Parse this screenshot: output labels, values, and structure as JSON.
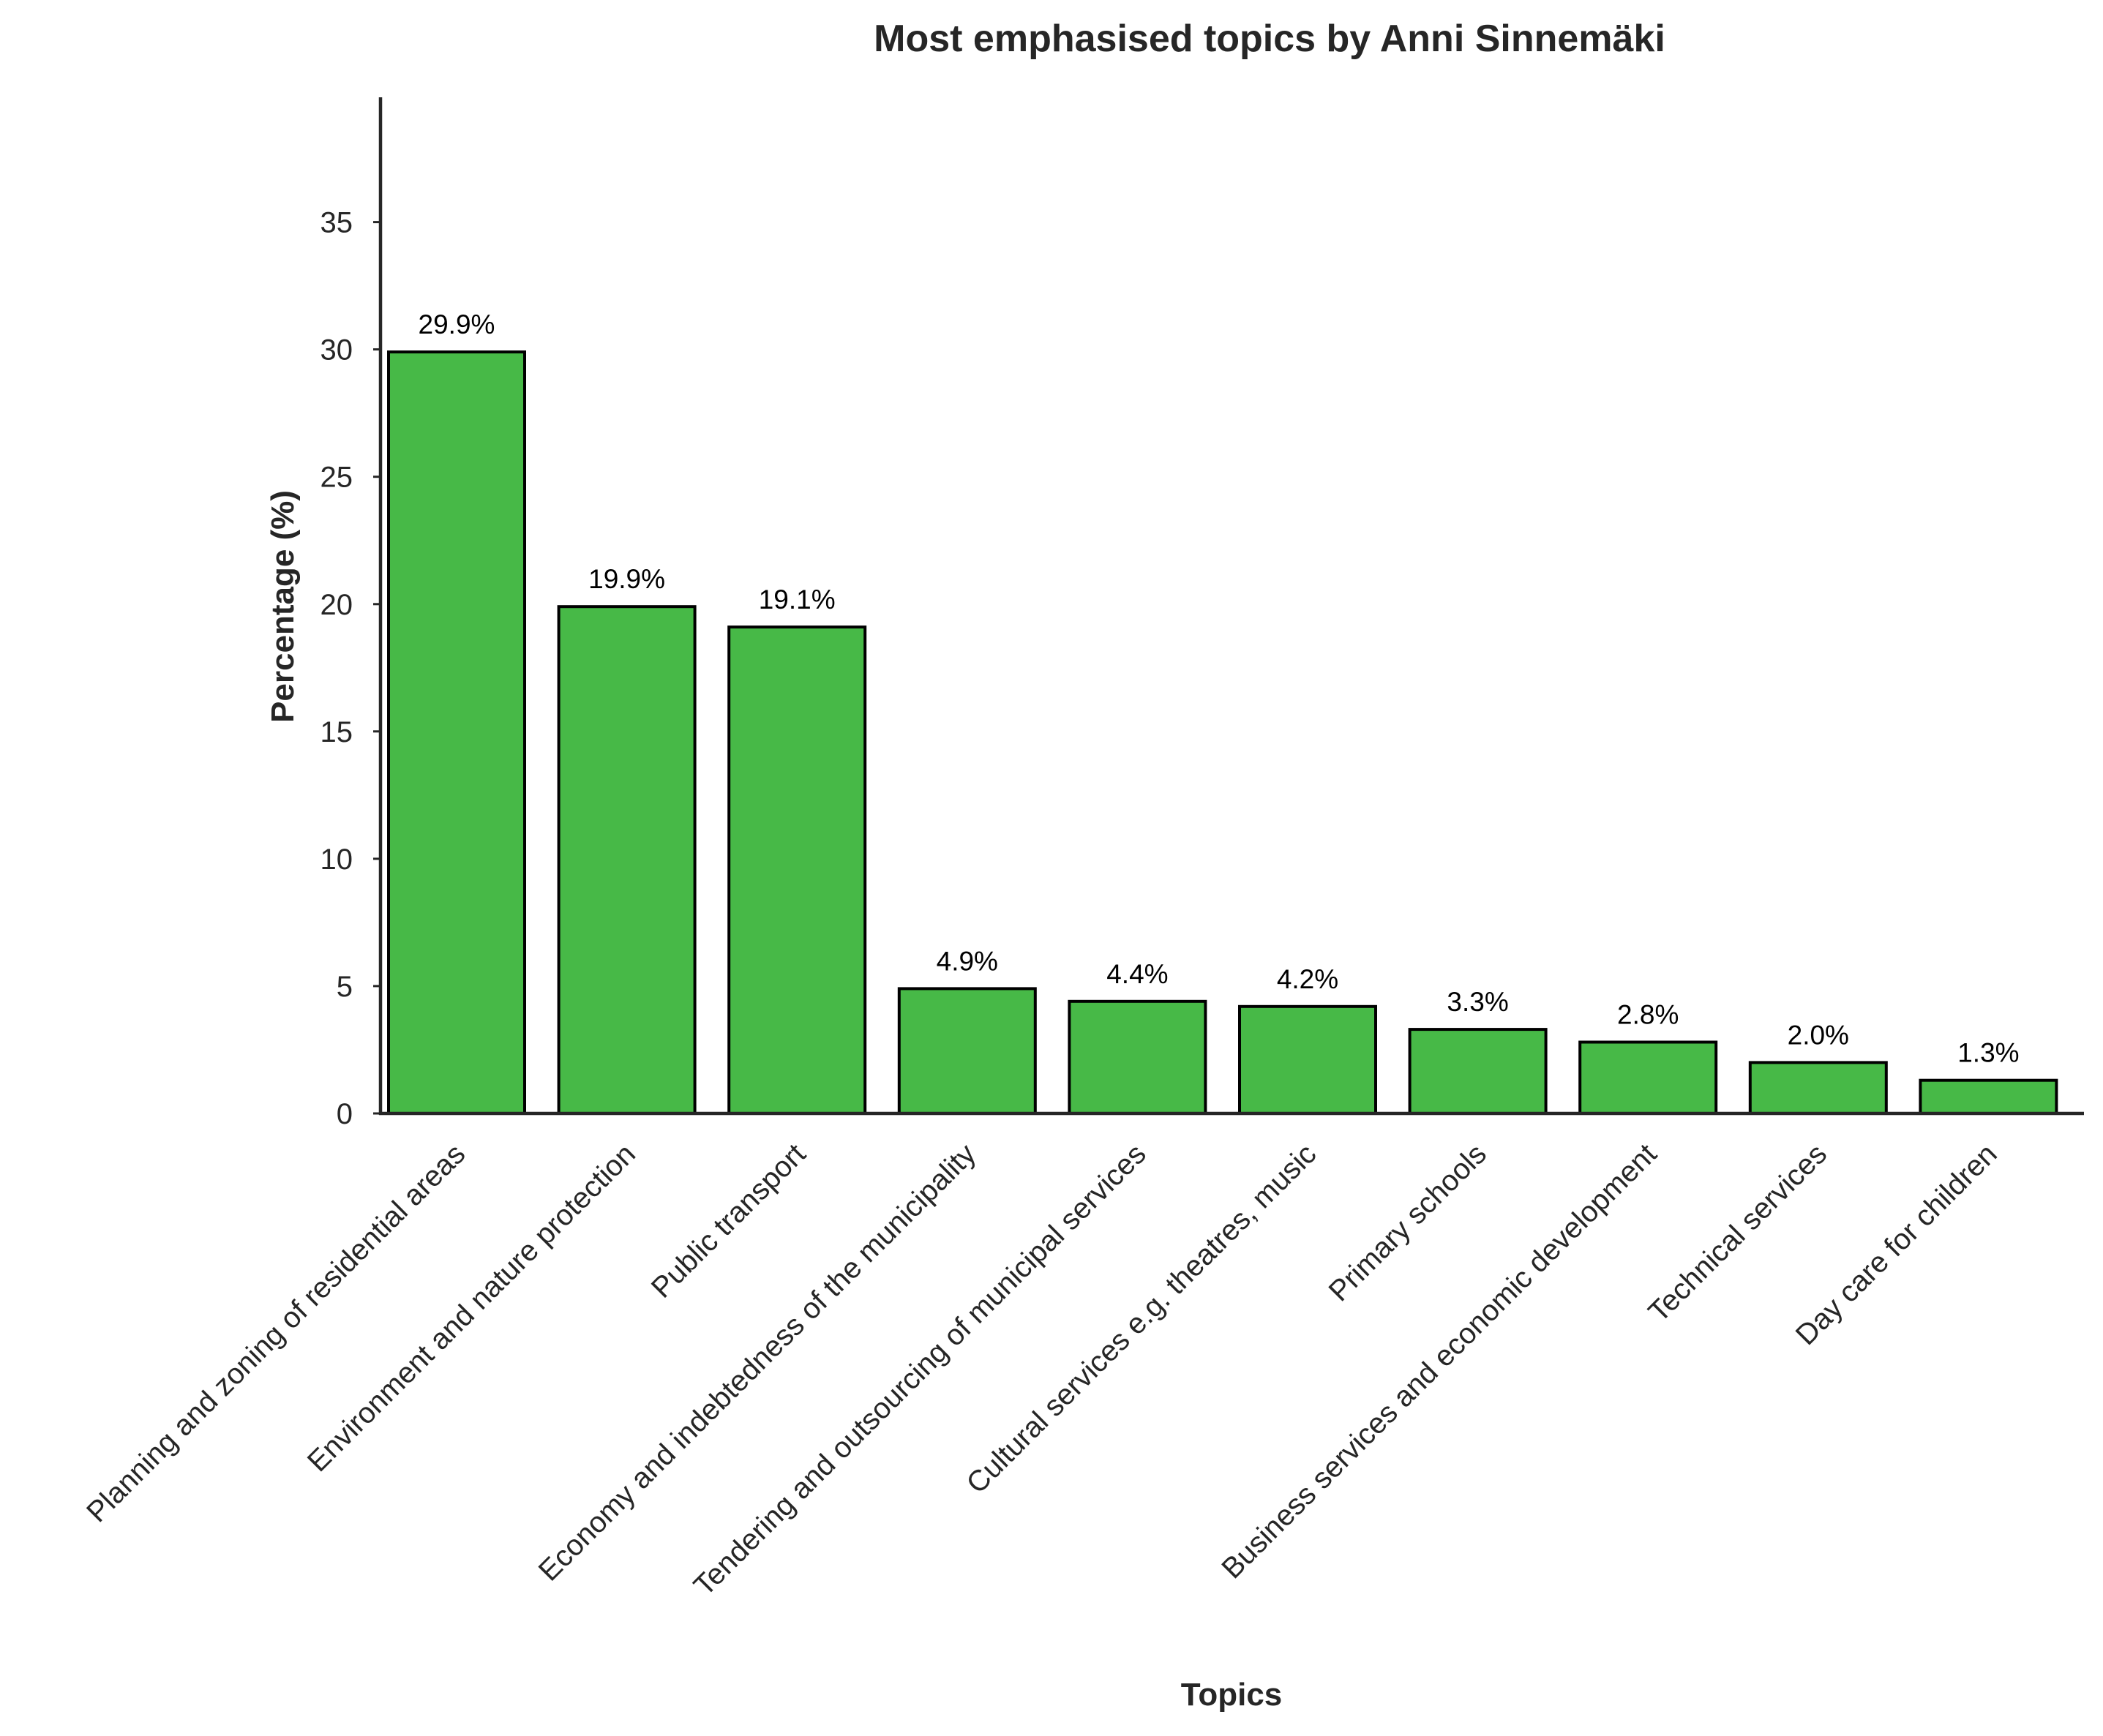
{
  "chart_data": {
    "type": "bar",
    "title": "Most emphasised topics by Anni Sinnemäki",
    "xlabel": "Topics",
    "ylabel": "Percentage (%)",
    "ylim": [
      0,
      39.9
    ],
    "yticks": [
      0,
      5,
      10,
      15,
      20,
      25,
      30,
      35
    ],
    "grid": false,
    "categories": [
      "Planning and zoning of residential areas",
      "Environment and nature protection",
      "Public transport",
      "Economy and indebtedness of the municipality",
      "Tendering and outsourcing of municipal services",
      "Cultural services e.g. theatres, music",
      "Primary schools",
      "Business services and economic development",
      "Technical services",
      "Day care for children"
    ],
    "values": [
      29.9,
      19.9,
      19.1,
      4.9,
      4.4,
      4.2,
      3.3,
      2.8,
      2.0,
      1.3
    ],
    "data_labels": [
      "29.9%",
      "19.9%",
      "19.1%",
      "4.9%",
      "4.4%",
      "4.2%",
      "3.3%",
      "2.8%",
      "2.0%",
      "1.3%"
    ],
    "bar_color": "#47b947",
    "bar_edge_color": "#000000"
  }
}
